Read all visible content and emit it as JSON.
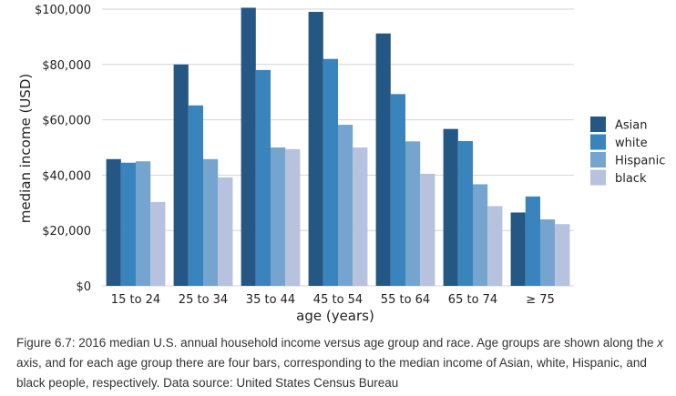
{
  "chart_data": {
    "type": "bar",
    "xlabel": "age (years)",
    "ylabel": "median income (USD)",
    "ylim": [
      0,
      100000
    ],
    "y_ticks": [
      0,
      20000,
      40000,
      60000,
      80000,
      100000
    ],
    "y_tick_labels": [
      "$0",
      "$20,000",
      "$40,000",
      "$60,000",
      "$80,000",
      "$100,000"
    ],
    "grid": "horizontal",
    "legend_position": "right",
    "categories": [
      "15 to 24",
      "25 to 34",
      "35 to 44",
      "45 to 54",
      "55 to 64",
      "65 to 74",
      "≥ 75"
    ],
    "series": [
      {
        "name": "Asian",
        "color": "#245783",
        "values": [
          45800,
          80000,
          100500,
          99000,
          91200,
          56700,
          26500
        ]
      },
      {
        "name": "white",
        "color": "#3a84bd",
        "values": [
          44500,
          65200,
          78000,
          82000,
          69300,
          52300,
          32300
        ]
      },
      {
        "name": "Hispanic",
        "color": "#75a4cf",
        "values": [
          45000,
          45800,
          50000,
          58200,
          52200,
          36700,
          24000
        ]
      },
      {
        "name": "black",
        "color": "#b7c2de",
        "values": [
          30300,
          39200,
          49400,
          50000,
          40500,
          28800,
          22300
        ]
      }
    ]
  },
  "caption": {
    "part1": "Figure 6.7: 2016 median U.S. annual household income versus age group and race. Age groups are shown along the ",
    "axis_var": "x",
    "part2": " axis, and for each age group there are four bars, corresponding to the median income of Asian, white, Hispanic, and black people, respectively. Data source: United States Census Bureau"
  }
}
